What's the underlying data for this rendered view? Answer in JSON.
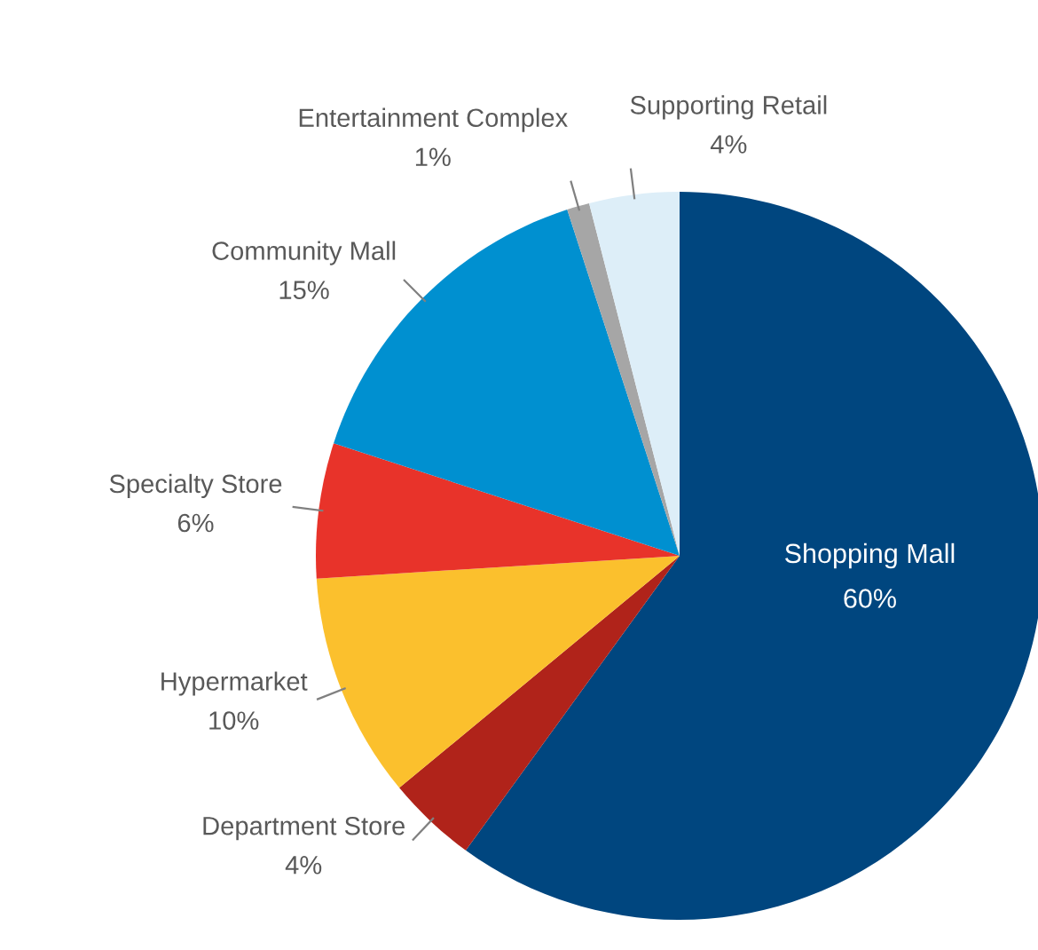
{
  "chart_data": {
    "type": "pie",
    "categories": [
      "Shopping Mall",
      "Department Store",
      "Hypermarket",
      "Specialty Store",
      "Community Mall",
      "Entertainment Complex",
      "Supporting Retail"
    ],
    "values": [
      60,
      4,
      10,
      6,
      15,
      1,
      4
    ],
    "value_labels": [
      "60%",
      "4%",
      "10%",
      "6%",
      "15%",
      "1%",
      "4%"
    ],
    "colors": [
      "#00467f",
      "#b0231a",
      "#fbc02d",
      "#e8332a",
      "#0090d0",
      "#a6a6a6",
      "#ddeef8"
    ],
    "legend": false
  }
}
